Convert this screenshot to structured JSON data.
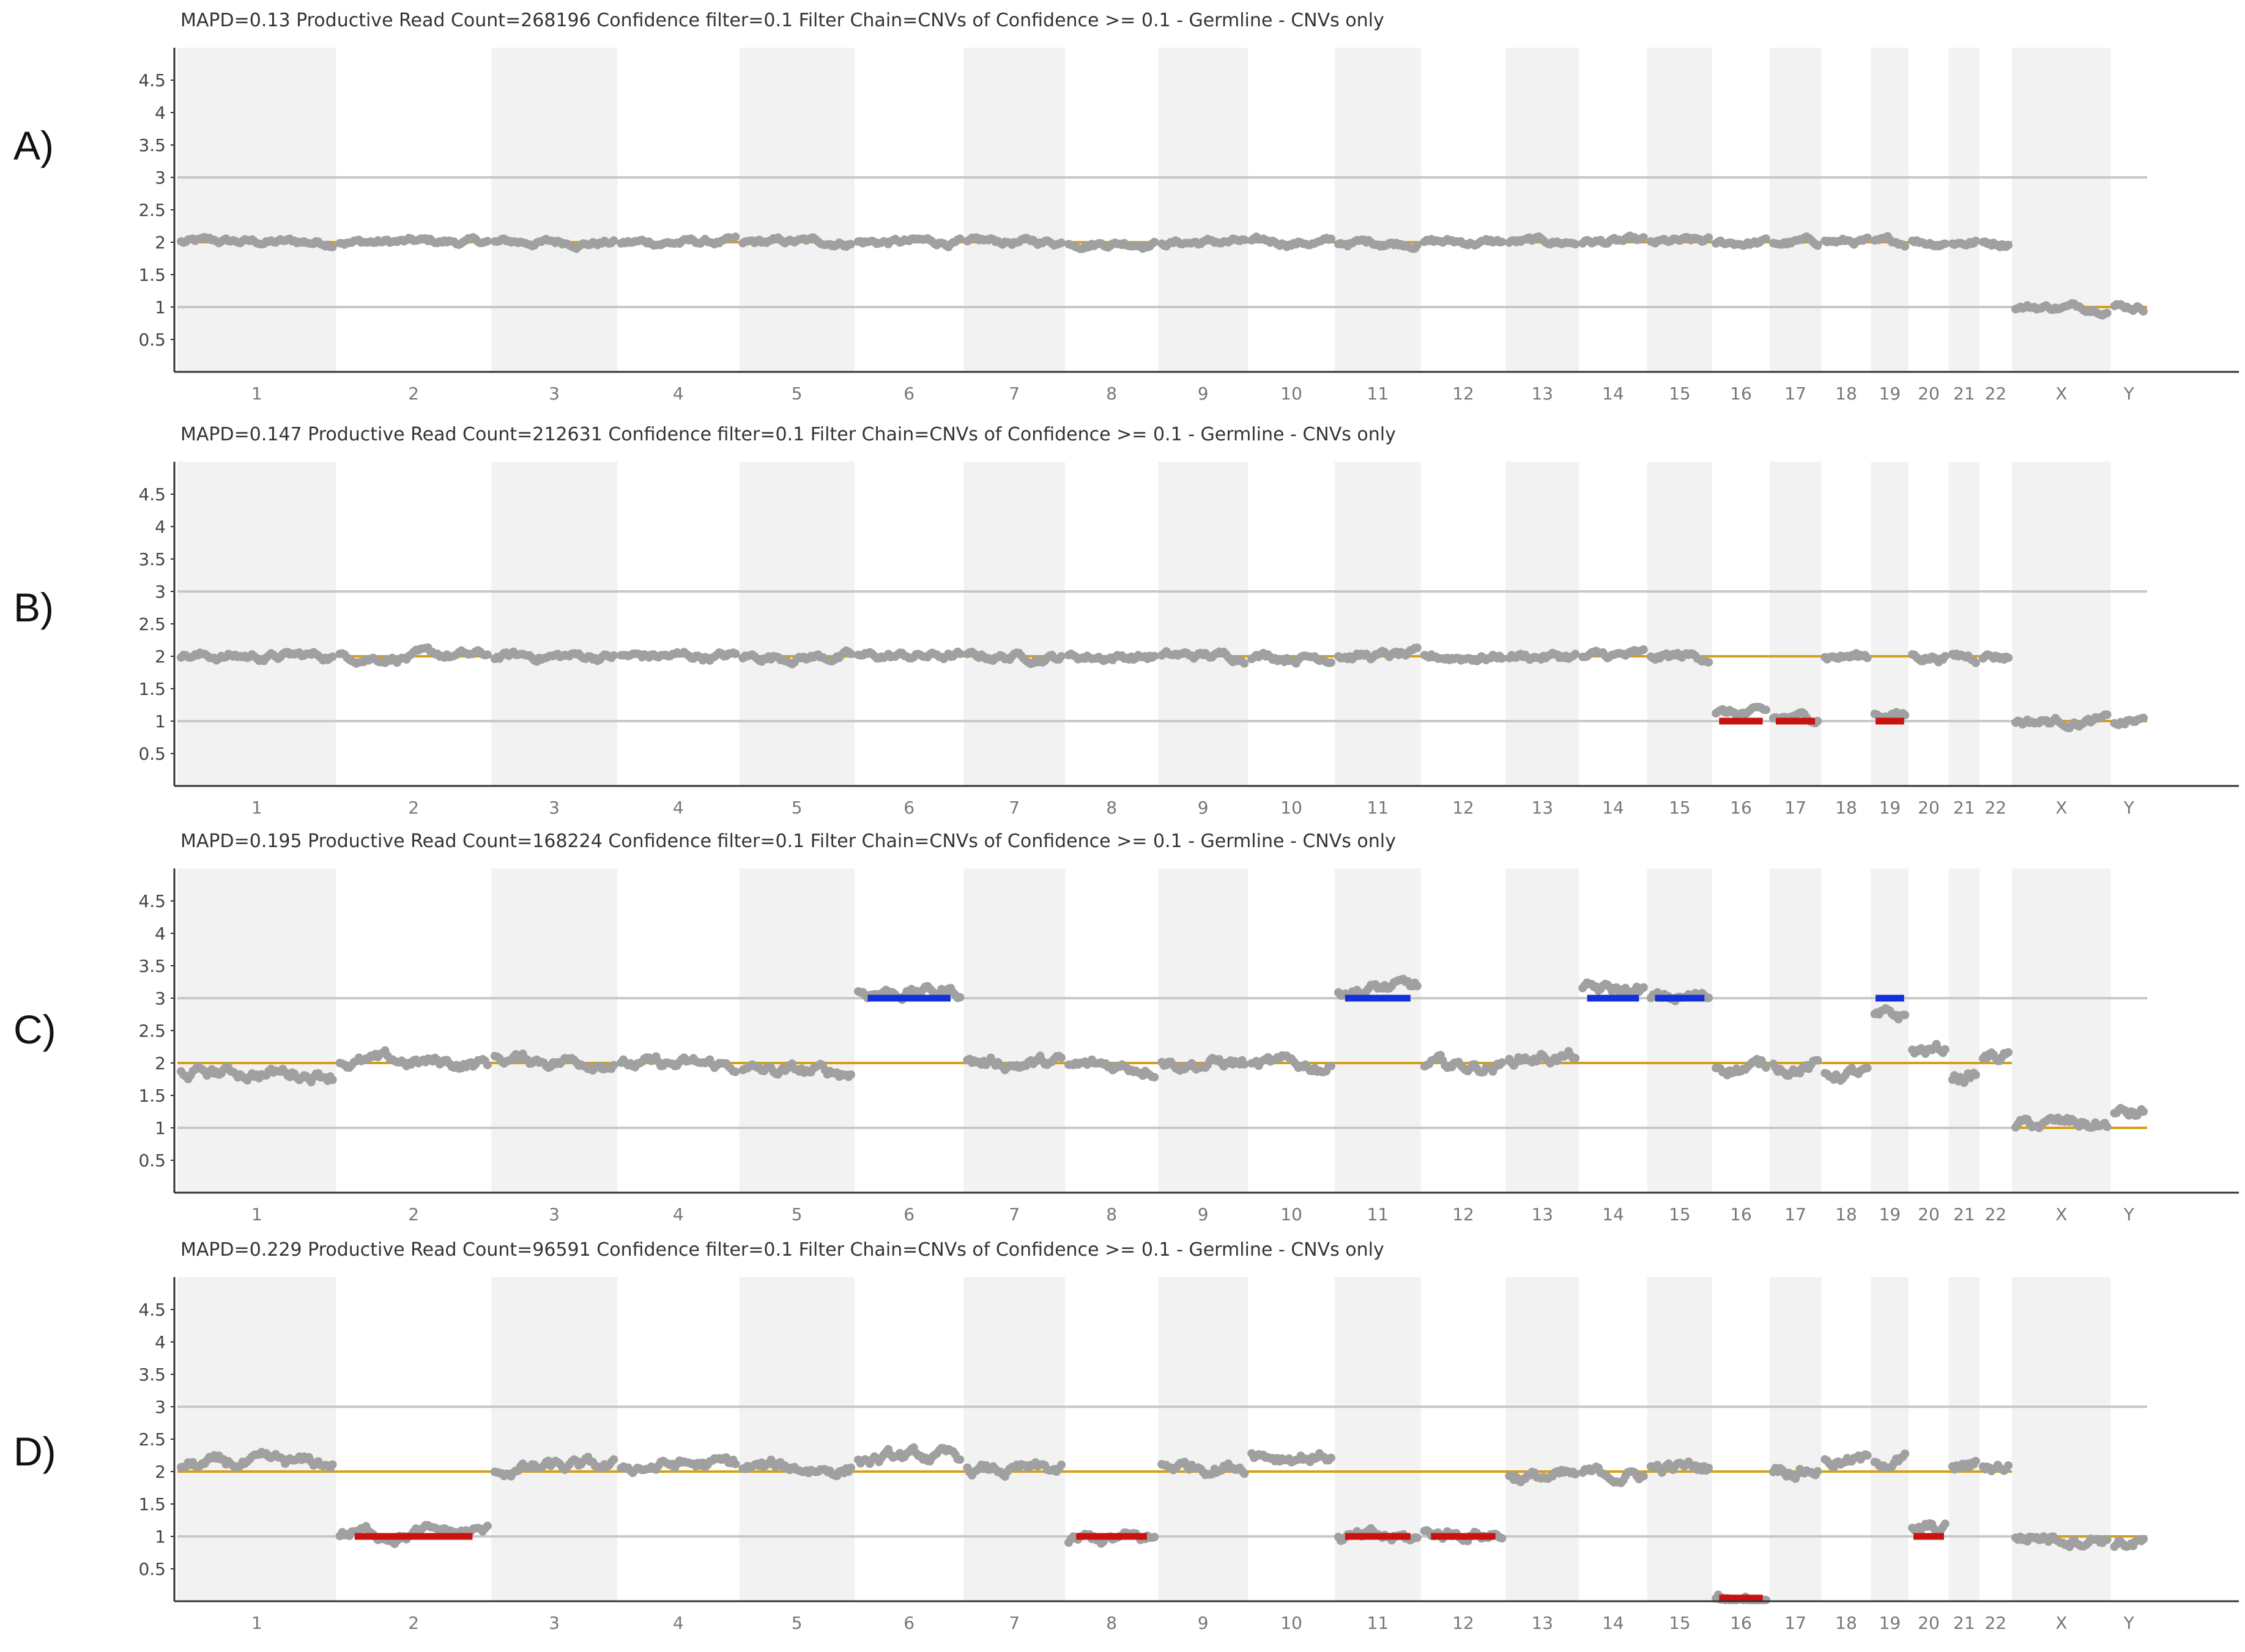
{
  "chart_data": {
    "type": "scatter",
    "chromosome_labels": [
      "1",
      "2",
      "3",
      "4",
      "5",
      "6",
      "7",
      "8",
      "9",
      "10",
      "11",
      "12",
      "13",
      "14",
      "15",
      "16",
      "17",
      "18",
      "19",
      "20",
      "21",
      "22",
      "X",
      "Y"
    ],
    "chromosome_relative_widths": [
      249,
      243,
      198,
      191,
      181,
      171,
      159,
      146,
      141,
      136,
      135,
      133,
      115,
      107,
      102,
      90,
      81,
      78,
      59,
      63,
      48,
      51,
      155,
      57
    ],
    "y_ticks": [
      0.5,
      1,
      1.5,
      2,
      2.5,
      3,
      3.5,
      4,
      4.5
    ],
    "y_tick_labels": [
      "0.5",
      "1",
      "1.5",
      "2",
      "2.5",
      "3",
      "3.5",
      "4",
      "4.5"
    ],
    "ylim": [
      0,
      5
    ],
    "reference_lines": [
      1,
      3
    ],
    "colors": {
      "points": "#a0a0a0",
      "baseline": "#d4a017",
      "gain": "#1530d6",
      "loss": "#cc1111",
      "band": "#f2f2f2",
      "ref_line": "#c8c8c8",
      "axis": "#333333"
    },
    "panels": [
      {
        "letter": "A)",
        "header": "MAPD=0.13 Productive Read Count=268196 Confidence filter=0.1 Filter Chain=CNVs of Confidence >= 0.1 - Germline - CNVs only",
        "baseline_segments": [
          {
            "from": "1",
            "to": "22",
            "value": 2
          },
          {
            "from": "X",
            "to": "Y",
            "value": 1
          }
        ],
        "copy_number_profile": [
          2,
          2,
          2,
          2,
          2,
          2,
          2,
          2,
          2,
          2,
          2,
          2,
          2,
          2,
          2,
          2,
          2,
          2,
          2,
          2,
          2,
          2,
          1,
          1
        ],
        "noise": 0.08,
        "cnv_calls": []
      },
      {
        "letter": "B)",
        "header": "MAPD=0.147 Productive Read Count=212631 Confidence filter=0.1 Filter Chain=CNVs of Confidence >= 0.1 - Germline - CNVs only",
        "baseline_segments": [
          {
            "from": "1",
            "to": "22",
            "value": 2
          },
          {
            "from": "X",
            "to": "Y",
            "value": 1
          }
        ],
        "copy_number_profile": [
          2,
          2,
          2,
          2,
          2,
          2,
          2,
          2,
          2,
          2,
          2,
          2,
          2,
          2,
          2,
          1.1,
          1.05,
          2,
          1.1,
          2,
          2,
          2,
          1,
          1
        ],
        "noise": 0.1,
        "cnv_calls": [
          {
            "chromosome": "16",
            "value": 1,
            "color": "loss"
          },
          {
            "chromosome": "17",
            "value": 1,
            "color": "loss"
          },
          {
            "chromosome": "19",
            "value": 1,
            "color": "loss"
          }
        ]
      },
      {
        "letter": "C)",
        "header": "MAPD=0.195 Productive Read Count=168224 Confidence filter=0.1 Filter Chain=CNVs of Confidence >= 0.1 - Germline - CNVs only",
        "baseline_segments": [
          {
            "from": "1",
            "to": "22",
            "value": 2
          },
          {
            "from": "X",
            "to": "Y",
            "value": 1
          }
        ],
        "copy_number_profile": [
          1.85,
          2,
          2.05,
          1.95,
          1.85,
          3.1,
          2,
          1.95,
          2,
          1.95,
          3.15,
          1.95,
          2.1,
          3.1,
          3,
          1.95,
          1.95,
          1.85,
          2.7,
          2.2,
          1.8,
          2.1,
          1.05,
          1.2
        ],
        "noise": 0.14,
        "cnv_calls": [
          {
            "chromosome": "6",
            "value": 3,
            "color": "gain"
          },
          {
            "chromosome": "11",
            "value": 3,
            "color": "gain"
          },
          {
            "chromosome": "14",
            "value": 3,
            "color": "gain"
          },
          {
            "chromosome": "15",
            "value": 3,
            "color": "gain"
          },
          {
            "chromosome": "19",
            "value": 3,
            "color": "gain"
          }
        ]
      },
      {
        "letter": "D)",
        "header": "MAPD=0.229 Productive Read Count=96591 Confidence filter=0.1 Filter Chain=CNVs of Confidence >= 0.1 - Germline - CNVs only",
        "baseline_segments": [
          {
            "from": "1",
            "to": "22",
            "value": 2
          },
          {
            "from": "X",
            "to": "Y",
            "value": 1
          }
        ],
        "copy_number_profile": [
          2.1,
          1.05,
          2.05,
          2.1,
          2.05,
          2.2,
          2,
          0.95,
          2.1,
          2.25,
          0.95,
          1.05,
          1.9,
          1.95,
          2.05,
          0.05,
          2.05,
          2.15,
          2.2,
          1.1,
          2.1,
          2.1,
          1,
          0.9
        ],
        "noise": 0.14,
        "cnv_calls": [
          {
            "chromosome": "2",
            "value": 1,
            "color": "loss"
          },
          {
            "chromosome": "8",
            "value": 1,
            "color": "loss"
          },
          {
            "chromosome": "11",
            "value": 1,
            "color": "loss"
          },
          {
            "chromosome": "12",
            "value": 1,
            "color": "loss"
          },
          {
            "chromosome": "16",
            "value": 0.05,
            "color": "loss"
          },
          {
            "chromosome": "20",
            "value": 1,
            "color": "loss"
          }
        ]
      }
    ]
  }
}
